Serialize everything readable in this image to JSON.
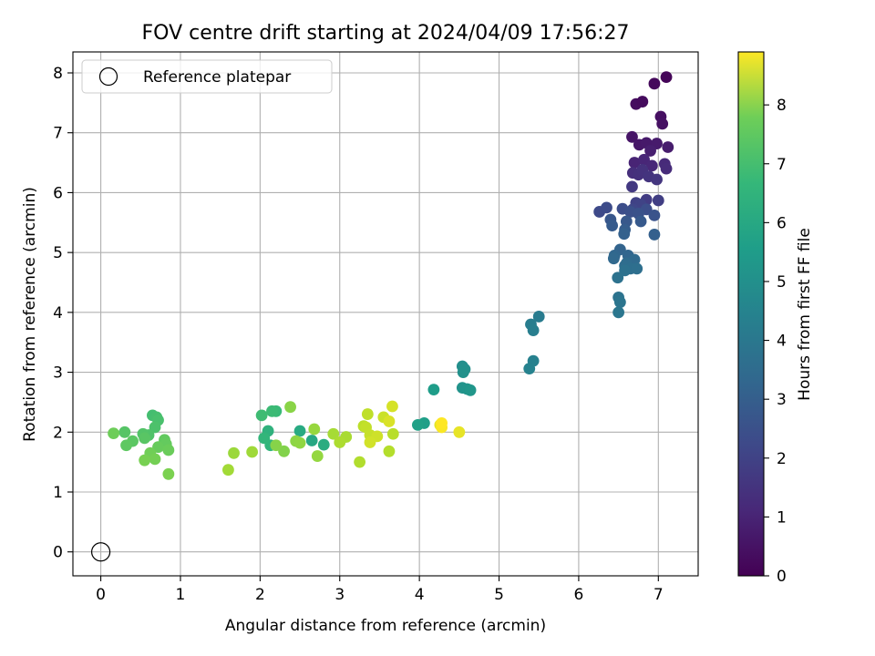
{
  "chart_data": {
    "type": "scatter",
    "title": "FOV centre drift starting at 2024/04/09 17:56:27",
    "xlabel": "Angular distance from reference (arcmin)",
    "ylabel": "Rotation from reference (arcmin)",
    "xlim": [
      -0.35,
      7.5
    ],
    "ylim": [
      -0.4,
      8.35
    ],
    "xticks": [
      0,
      1,
      2,
      3,
      4,
      5,
      6,
      7
    ],
    "yticks": [
      0,
      1,
      2,
      3,
      4,
      5,
      6,
      7,
      8
    ],
    "grid": true,
    "legend": {
      "placement": "top-left",
      "entries": [
        "Reference platepar"
      ]
    },
    "colorbar": {
      "label": "Hours from first FF file",
      "colormap": "viridis",
      "range": [
        0,
        8.9
      ],
      "ticks": [
        0,
        1,
        2,
        3,
        4,
        5,
        6,
        7,
        8
      ]
    },
    "reference_point": {
      "name": "Reference platepar",
      "x": 0,
      "y": 0,
      "marker": "open-circle"
    },
    "series": [
      {
        "points": [
          [
            6.95,
            7.82,
            0.2
          ],
          [
            7.1,
            7.93,
            0.1
          ],
          [
            6.72,
            7.48,
            0.3
          ],
          [
            6.8,
            7.52,
            0.25
          ],
          [
            7.03,
            7.27,
            0.35
          ],
          [
            7.05,
            7.15,
            0.4
          ],
          [
            6.67,
            6.93,
            0.5
          ],
          [
            6.76,
            6.8,
            0.55
          ],
          [
            6.85,
            6.83,
            0.6
          ],
          [
            6.98,
            6.82,
            0.65
          ],
          [
            7.12,
            6.76,
            0.7
          ],
          [
            6.9,
            6.7,
            0.75
          ],
          [
            6.7,
            6.5,
            0.9
          ],
          [
            6.82,
            6.55,
            0.95
          ],
          [
            6.92,
            6.45,
            1.0
          ],
          [
            7.08,
            6.48,
            1.05
          ],
          [
            7.1,
            6.4,
            1.1
          ],
          [
            6.68,
            6.33,
            1.2
          ],
          [
            6.75,
            6.3,
            1.25
          ],
          [
            6.8,
            6.38,
            1.3
          ],
          [
            6.88,
            6.27,
            1.35
          ],
          [
            6.98,
            6.22,
            1.4
          ],
          [
            6.67,
            6.1,
            1.5
          ],
          [
            6.85,
            5.88,
            1.6
          ],
          [
            7.0,
            5.87,
            1.65
          ],
          [
            6.72,
            5.83,
            1.75
          ],
          [
            6.78,
            5.8,
            1.8
          ],
          [
            6.68,
            5.72,
            1.9
          ],
          [
            6.26,
            5.68,
            2.0
          ],
          [
            6.35,
            5.75,
            2.05
          ],
          [
            6.55,
            5.73,
            2.1
          ],
          [
            6.85,
            5.72,
            2.15
          ],
          [
            6.65,
            5.68,
            2.2
          ],
          [
            6.75,
            5.65,
            2.25
          ],
          [
            6.95,
            5.62,
            2.3
          ],
          [
            6.4,
            5.55,
            2.4
          ],
          [
            6.6,
            5.52,
            2.45
          ],
          [
            6.78,
            5.52,
            2.5
          ],
          [
            6.42,
            5.45,
            2.55
          ],
          [
            6.58,
            5.38,
            2.6
          ],
          [
            6.95,
            5.3,
            2.7
          ],
          [
            6.57,
            5.31,
            2.75
          ],
          [
            6.52,
            5.05,
            2.85
          ],
          [
            6.62,
            4.95,
            2.9
          ],
          [
            6.45,
            4.95,
            2.95
          ],
          [
            6.44,
            4.9,
            3.0
          ],
          [
            6.7,
            4.88,
            3.05
          ],
          [
            6.6,
            4.82,
            3.1
          ],
          [
            6.58,
            4.78,
            3.15
          ],
          [
            6.65,
            4.73,
            3.2
          ],
          [
            6.73,
            4.73,
            3.25
          ],
          [
            6.58,
            4.7,
            3.3
          ],
          [
            6.49,
            4.58,
            3.35
          ],
          [
            6.5,
            4.25,
            3.4
          ],
          [
            6.52,
            4.17,
            3.45
          ],
          [
            6.5,
            4.0,
            3.5
          ],
          [
            5.5,
            3.93,
            3.7
          ],
          [
            5.4,
            3.8,
            3.75
          ],
          [
            5.43,
            3.7,
            3.8
          ],
          [
            5.43,
            3.19,
            3.9
          ],
          [
            5.38,
            3.06,
            3.95
          ],
          [
            4.54,
            3.1,
            4.4
          ],
          [
            4.57,
            3.05,
            4.45
          ],
          [
            4.55,
            3.0,
            4.5
          ],
          [
            4.54,
            2.74,
            4.55
          ],
          [
            4.6,
            2.72,
            4.6
          ],
          [
            4.64,
            2.7,
            4.65
          ],
          [
            4.18,
            2.71,
            4.9
          ],
          [
            4.06,
            2.15,
            5.0
          ],
          [
            3.98,
            2.12,
            5.05
          ],
          [
            2.65,
            1.86,
            5.3
          ],
          [
            2.5,
            2.02,
            5.4
          ],
          [
            2.8,
            1.79,
            5.5
          ],
          [
            2.1,
            2.02,
            5.7
          ],
          [
            2.13,
            1.78,
            5.8
          ],
          [
            2.05,
            1.9,
            5.85
          ],
          [
            2.2,
            2.35,
            6.0
          ],
          [
            2.15,
            2.35,
            6.05
          ],
          [
            2.02,
            2.28,
            6.1
          ],
          [
            0.65,
            2.28,
            6.2
          ],
          [
            0.7,
            2.25,
            6.25
          ],
          [
            0.72,
            2.2,
            6.3
          ],
          [
            0.68,
            2.08,
            6.35
          ],
          [
            0.6,
            1.95,
            6.4
          ],
          [
            0.53,
            1.97,
            6.45
          ],
          [
            0.3,
            2.0,
            6.5
          ],
          [
            0.55,
            1.9,
            6.55
          ],
          [
            0.4,
            1.85,
            6.6
          ],
          [
            0.32,
            1.78,
            6.65
          ],
          [
            0.8,
            1.87,
            6.7
          ],
          [
            0.82,
            1.8,
            6.75
          ],
          [
            0.72,
            1.75,
            6.8
          ],
          [
            0.85,
            1.7,
            6.85
          ],
          [
            0.16,
            1.98,
            6.9
          ],
          [
            0.62,
            1.65,
            6.95
          ],
          [
            0.68,
            1.55,
            7.0
          ],
          [
            0.55,
            1.53,
            7.05
          ],
          [
            0.85,
            1.3,
            7.1
          ],
          [
            2.3,
            1.68,
            7.2
          ],
          [
            2.2,
            1.78,
            7.25
          ],
          [
            2.38,
            2.42,
            7.3
          ],
          [
            2.45,
            1.85,
            7.35
          ],
          [
            2.5,
            1.82,
            7.4
          ],
          [
            2.72,
            1.6,
            7.45
          ],
          [
            2.68,
            2.05,
            7.5
          ],
          [
            1.67,
            1.65,
            7.55
          ],
          [
            1.9,
            1.67,
            7.6
          ],
          [
            1.6,
            1.37,
            7.65
          ],
          [
            2.92,
            1.97,
            7.7
          ],
          [
            3.08,
            1.92,
            7.75
          ],
          [
            3.0,
            1.83,
            7.8
          ],
          [
            3.25,
            1.5,
            7.85
          ],
          [
            3.62,
            1.68,
            7.9
          ],
          [
            3.67,
            1.97,
            7.95
          ],
          [
            3.3,
            2.1,
            8.0
          ],
          [
            3.35,
            2.3,
            8.05
          ],
          [
            3.33,
            2.08,
            8.1
          ],
          [
            3.38,
            1.95,
            8.15
          ],
          [
            3.55,
            2.25,
            8.2
          ],
          [
            3.47,
            1.93,
            8.25
          ],
          [
            3.38,
            1.83,
            8.3
          ],
          [
            3.66,
            2.43,
            8.35
          ],
          [
            3.62,
            2.18,
            8.4
          ],
          [
            4.26,
            2.12,
            8.55
          ],
          [
            4.5,
            2.0,
            8.6
          ],
          [
            4.28,
            2.08,
            8.85
          ],
          [
            4.28,
            2.15,
            8.9
          ]
        ]
      }
    ]
  }
}
